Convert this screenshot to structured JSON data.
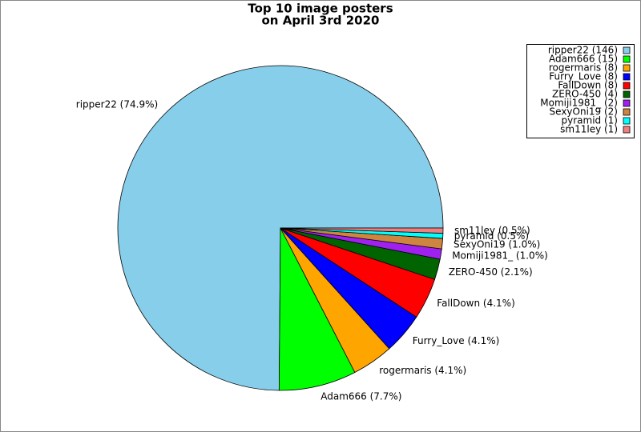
{
  "chart_data": {
    "type": "pie",
    "title": "Top 10 image posters",
    "subtitle": "on April 3rd 2020",
    "categories": [
      "ripper22 (146)",
      "Adam666 (15)",
      "rogermaris (8)",
      "Furry_Love (8)",
      "FallDown (8)",
      "ZERO-450 (4)",
      "Momiji1981_ (2)",
      "SexyOni19 (2)",
      "pyramid (1)",
      "sm11ley (1)"
    ],
    "values": [
      146,
      15,
      8,
      8,
      8,
      4,
      2,
      2,
      1,
      1
    ],
    "slice_labels": [
      "ripper22 (74.9%)",
      "Adam666 (7.7%)",
      "rogermaris (4.1%)",
      "Furry_Love (4.1%)",
      "FallDown (4.1%)",
      "ZERO-450 (2.1%)",
      "Momiji1981_ (1.0%)",
      "SexyOni19 (1.0%)",
      "pyramid (0.5%)",
      "sm11ley (0.5%)"
    ],
    "colors": [
      "#87ceeb",
      "#00ff00",
      "#ffa500",
      "#0000ff",
      "#ff0000",
      "#006400",
      "#a020f0",
      "#cd853f",
      "#00ffff",
      "#f08080"
    ],
    "legend": "upper right"
  }
}
